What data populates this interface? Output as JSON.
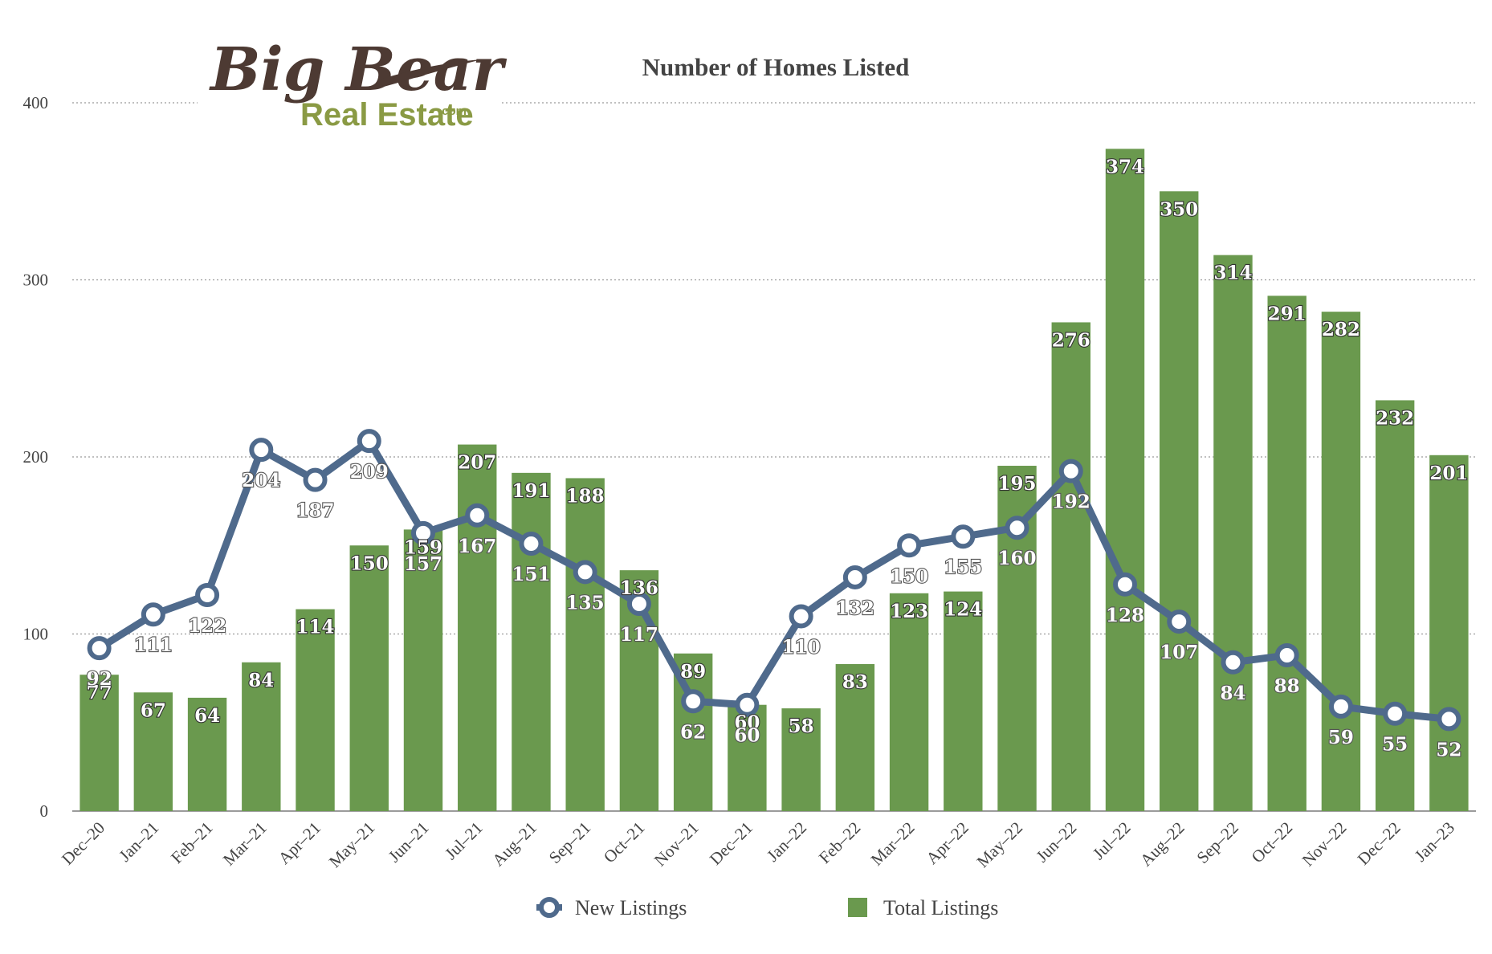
{
  "logo": {
    "line1": "Big Bear",
    "line2": "Real Estate",
    "suffix": ".com"
  },
  "colors": {
    "bars": "#6a994e",
    "line": "#4f6a8c",
    "grid": "#9a9a9a",
    "text": "#444444"
  },
  "chart_data": {
    "type": "bar",
    "title": "Number of Homes Listed",
    "xlabel": "",
    "ylabel": "",
    "ylim": [
      0,
      400
    ],
    "yticks": [
      0,
      100,
      200,
      300,
      400
    ],
    "grid": true,
    "legend_position": "bottom",
    "categories": [
      "Dec–20",
      "Jan–21",
      "Feb–21",
      "Mar–21",
      "Apr–21",
      "May–21",
      "Jun–21",
      "Jul–21",
      "Aug–21",
      "Sep–21",
      "Oct–21",
      "Nov–21",
      "Dec–21",
      "Jan–22",
      "Feb–22",
      "Mar–22",
      "Apr–22",
      "May–22",
      "Jun–22",
      "Jul–22",
      "Aug–22",
      "Sep–22",
      "Oct–22",
      "Nov–22",
      "Dec–22",
      "Jan–23"
    ],
    "series": [
      {
        "name": "New Listings",
        "type": "line",
        "values": [
          92,
          111,
          122,
          204,
          187,
          209,
          157,
          167,
          151,
          135,
          117,
          62,
          60,
          110,
          132,
          150,
          155,
          160,
          192,
          128,
          107,
          84,
          88,
          59,
          55,
          52
        ]
      },
      {
        "name": "Total Listings",
        "type": "bar",
        "values": [
          77,
          67,
          64,
          84,
          114,
          150,
          159,
          207,
          191,
          188,
          136,
          89,
          60,
          58,
          83,
          123,
          124,
          195,
          276,
          374,
          350,
          314,
          291,
          282,
          232,
          201
        ]
      }
    ]
  }
}
